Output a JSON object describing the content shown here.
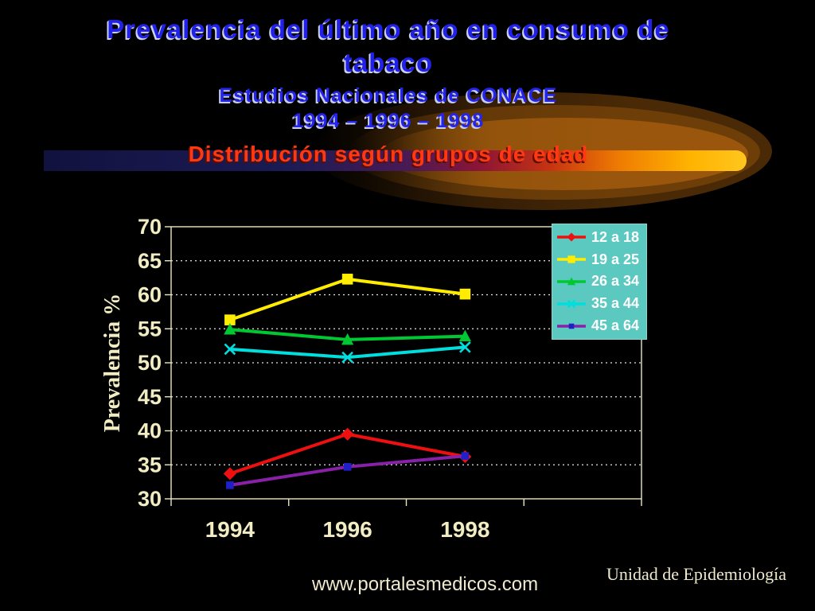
{
  "slide": {
    "title_line1": "Prevalencia del último año en consumo de",
    "title_line2": "tabaco",
    "subtitle1": "Estudios Nacionales de CONACE",
    "subtitle2": "1994 – 1996 – 1998",
    "subtitle3": "Distribución según grupos de edad"
  },
  "footer": {
    "website": "www.portalesmedicos.com",
    "credit": "Unidad de Epidemiología"
  },
  "colors": {
    "title_blue": "#2121e8",
    "heading_red": "#ff3812",
    "axis_text": "#f2ecc2",
    "plot_border": "#ece6c4",
    "gridline": "#e8e8e8",
    "legend_bg": "#5cc9c1",
    "legend_text": "#ffffff"
  },
  "chart_data": {
    "type": "line",
    "title": "",
    "categories": [
      "1994",
      "1996",
      "1998"
    ],
    "xlabel": "",
    "ylabel": "Prevalencia  %",
    "ylim": [
      30,
      70
    ],
    "ytick_step": 5,
    "grid": true,
    "grid_style": "dotted",
    "legend_position": "top-right",
    "x_slots": 4,
    "series": [
      {
        "name": "12 a 18",
        "color": "#ee1010",
        "marker": "diamond",
        "values": [
          33.7,
          39.5,
          36.2
        ]
      },
      {
        "name": "19 a 25",
        "color": "#ffec00",
        "marker": "square",
        "values": [
          56.3,
          62.3,
          60.1
        ]
      },
      {
        "name": "26 a 34",
        "color": "#00c832",
        "marker": "triangle",
        "values": [
          54.9,
          53.4,
          53.9
        ]
      },
      {
        "name": "35 a 44",
        "color": "#00dede",
        "marker": "x",
        "values": [
          52.0,
          50.8,
          52.3
        ]
      },
      {
        "name": "45 a 64",
        "color": "#8820a8",
        "marker": "square-small",
        "marker_color": "#2020c8",
        "values": [
          32.0,
          34.7,
          36.3
        ]
      }
    ]
  }
}
